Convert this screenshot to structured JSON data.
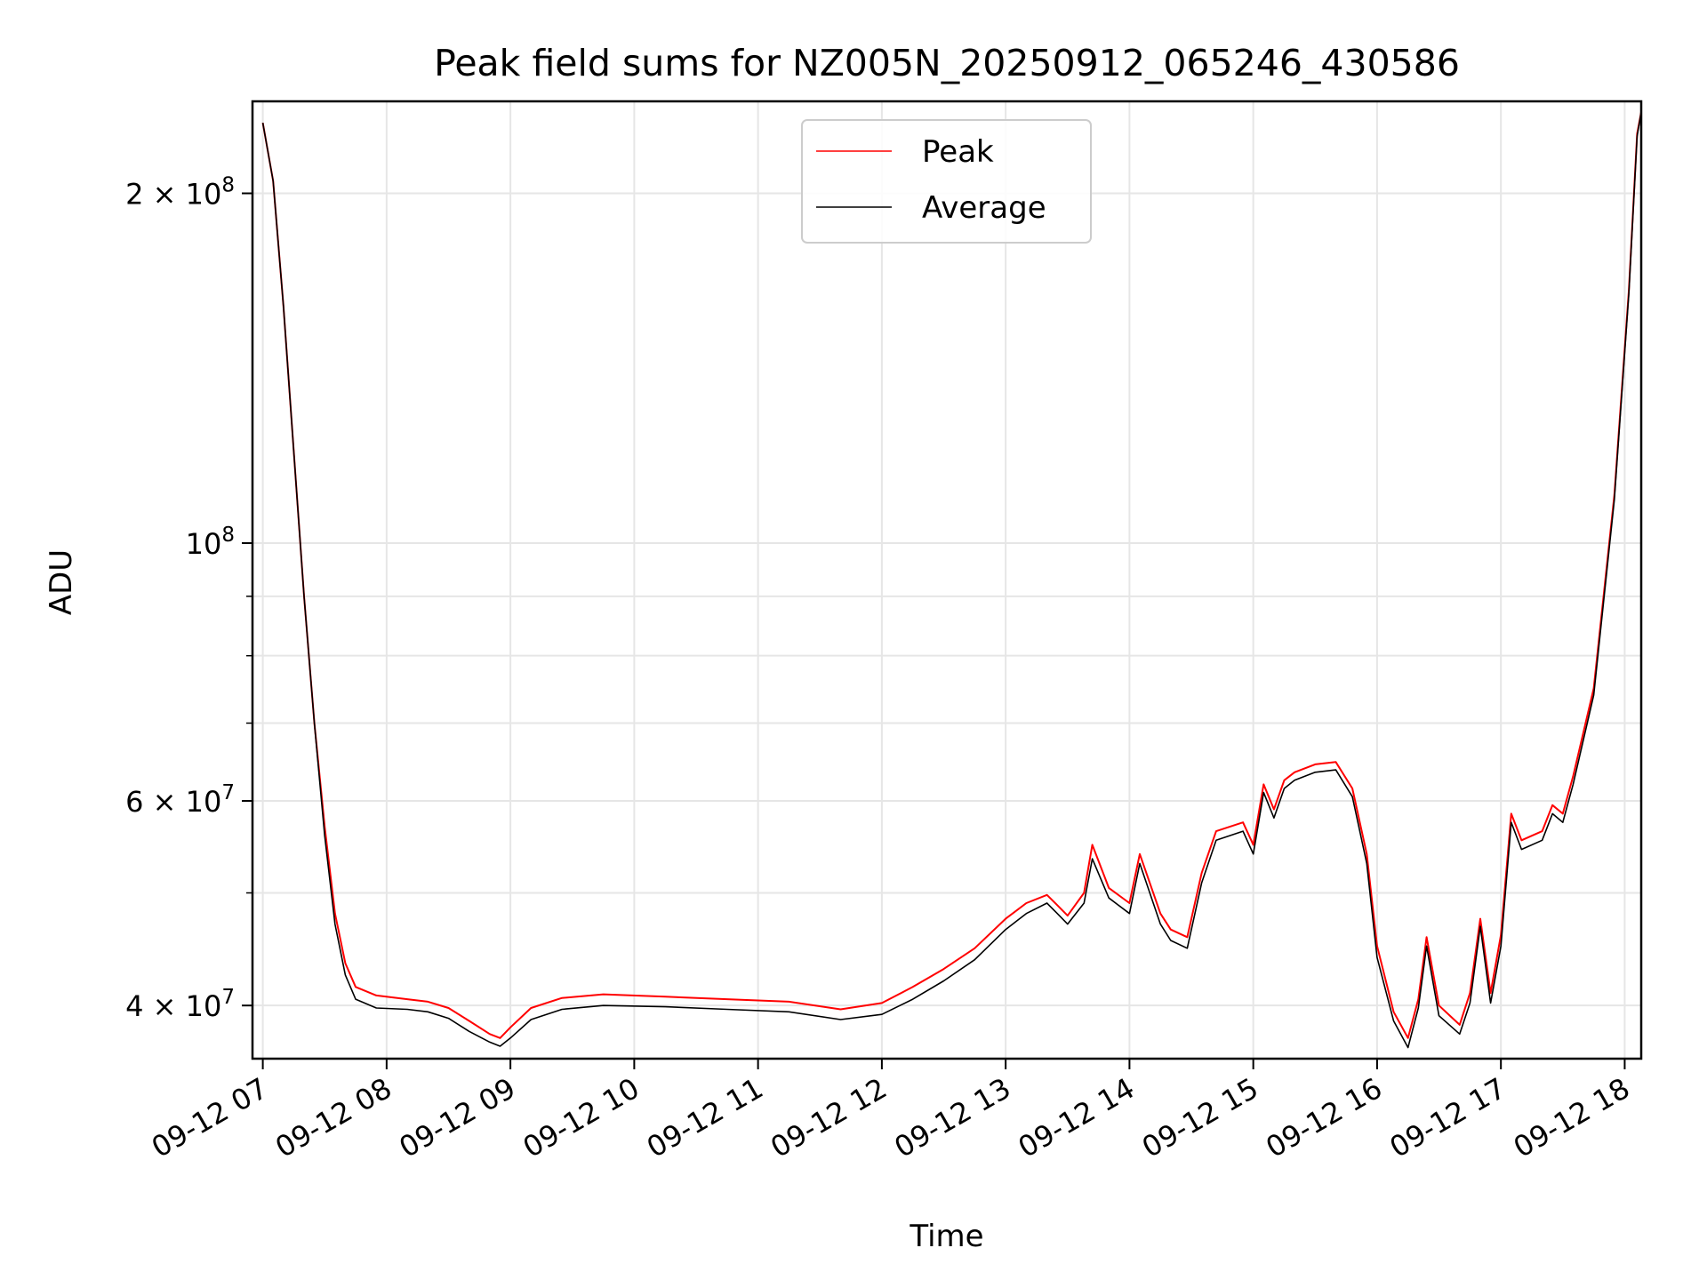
{
  "chart_data": {
    "type": "line",
    "title": "Peak field sums for NZ005N_20250912_065246_430586",
    "xlabel": "Time",
    "ylabel": "ADU",
    "yscale": "log",
    "ylim": [
      36000000,
      240000000
    ],
    "xlim": [
      "2025-09-12T06:55",
      "2025-09-12T18:08"
    ],
    "grid": true,
    "legend_position": "upper center",
    "x_tick_labels": [
      "09-12 07",
      "09-12 08",
      "09-12 09",
      "09-12 10",
      "09-12 11",
      "09-12 12",
      "09-12 13",
      "09-12 14",
      "09-12 15",
      "09-12 16",
      "09-12 17",
      "09-12 18"
    ],
    "y_tick_labels": [
      {
        "value": 40000000,
        "base": "4 × 10",
        "exp": "7"
      },
      {
        "value": 60000000,
        "base": "6 × 10",
        "exp": "7"
      },
      {
        "value": 100000000,
        "base": "10",
        "exp": "8"
      },
      {
        "value": 200000000,
        "base": "2 × 10",
        "exp": "8"
      }
    ],
    "series": [
      {
        "name": "Peak",
        "color": "#ff0000",
        "points": [
          [
            "2025-09-12T07:00",
            230000000
          ],
          [
            "2025-09-12T07:05",
            205000000
          ],
          [
            "2025-09-12T07:10",
            160000000
          ],
          [
            "2025-09-12T07:15",
            120000000
          ],
          [
            "2025-09-12T07:20",
            90000000
          ],
          [
            "2025-09-12T07:25",
            70000000
          ],
          [
            "2025-09-12T07:30",
            57000000
          ],
          [
            "2025-09-12T07:35",
            48000000
          ],
          [
            "2025-09-12T07:40",
            43500000
          ],
          [
            "2025-09-12T07:45",
            41500000
          ],
          [
            "2025-09-12T07:55",
            40800000
          ],
          [
            "2025-09-12T08:10",
            40500000
          ],
          [
            "2025-09-12T08:20",
            40300000
          ],
          [
            "2025-09-12T08:30",
            39800000
          ],
          [
            "2025-09-12T08:40",
            38800000
          ],
          [
            "2025-09-12T08:50",
            37800000
          ],
          [
            "2025-09-12T08:55",
            37500000
          ],
          [
            "2025-09-12T09:00",
            38300000
          ],
          [
            "2025-09-12T09:10",
            39800000
          ],
          [
            "2025-09-12T09:25",
            40600000
          ],
          [
            "2025-09-12T09:45",
            40900000
          ],
          [
            "2025-09-12T10:15",
            40700000
          ],
          [
            "2025-09-12T10:45",
            40500000
          ],
          [
            "2025-09-12T11:15",
            40300000
          ],
          [
            "2025-09-12T11:40",
            39700000
          ],
          [
            "2025-09-12T12:00",
            40200000
          ],
          [
            "2025-09-12T12:15",
            41500000
          ],
          [
            "2025-09-12T12:30",
            43000000
          ],
          [
            "2025-09-12T12:45",
            44800000
          ],
          [
            "2025-09-12T13:00",
            47500000
          ],
          [
            "2025-09-12T13:10",
            49000000
          ],
          [
            "2025-09-12T13:20",
            49800000
          ],
          [
            "2025-09-12T13:25",
            48800000
          ],
          [
            "2025-09-12T13:30",
            47800000
          ],
          [
            "2025-09-12T13:38",
            50000000
          ],
          [
            "2025-09-12T13:42",
            55000000
          ],
          [
            "2025-09-12T13:50",
            50500000
          ],
          [
            "2025-09-12T14:00",
            49000000
          ],
          [
            "2025-09-12T14:05",
            54000000
          ],
          [
            "2025-09-12T14:15",
            48000000
          ],
          [
            "2025-09-12T14:20",
            46500000
          ],
          [
            "2025-09-12T14:28",
            45800000
          ],
          [
            "2025-09-12T14:35",
            52000000
          ],
          [
            "2025-09-12T14:42",
            56500000
          ],
          [
            "2025-09-12T14:55",
            57500000
          ],
          [
            "2025-09-12T15:00",
            55000000
          ],
          [
            "2025-09-12T15:05",
            62000000
          ],
          [
            "2025-09-12T15:10",
            59000000
          ],
          [
            "2025-09-12T15:15",
            62500000
          ],
          [
            "2025-09-12T15:20",
            63500000
          ],
          [
            "2025-09-12T15:30",
            64500000
          ],
          [
            "2025-09-12T15:40",
            64800000
          ],
          [
            "2025-09-12T15:48",
            61500000
          ],
          [
            "2025-09-12T15:55",
            54000000
          ],
          [
            "2025-09-12T16:00",
            45000000
          ],
          [
            "2025-09-12T16:08",
            39500000
          ],
          [
            "2025-09-12T16:15",
            37500000
          ],
          [
            "2025-09-12T16:20",
            40500000
          ],
          [
            "2025-09-12T16:24",
            45800000
          ],
          [
            "2025-09-12T16:30",
            40000000
          ],
          [
            "2025-09-12T16:40",
            38500000
          ],
          [
            "2025-09-12T16:45",
            41000000
          ],
          [
            "2025-09-12T16:50",
            47500000
          ],
          [
            "2025-09-12T16:55",
            41000000
          ],
          [
            "2025-09-12T17:00",
            46000000
          ],
          [
            "2025-09-12T17:05",
            58500000
          ],
          [
            "2025-09-12T17:10",
            55500000
          ],
          [
            "2025-09-12T17:20",
            56500000
          ],
          [
            "2025-09-12T17:25",
            59500000
          ],
          [
            "2025-09-12T17:30",
            58500000
          ],
          [
            "2025-09-12T17:35",
            63000000
          ],
          [
            "2025-09-12T17:45",
            75000000
          ],
          [
            "2025-09-12T17:55",
            110000000
          ],
          [
            "2025-09-12T18:02",
            165000000
          ],
          [
            "2025-09-12T18:06",
            225000000
          ],
          [
            "2025-09-12T18:08",
            235000000
          ]
        ]
      },
      {
        "name": "Average",
        "color": "#000000",
        "points": [
          [
            "2025-09-12T07:00",
            230000000
          ],
          [
            "2025-09-12T07:05",
            205000000
          ],
          [
            "2025-09-12T07:10",
            160000000
          ],
          [
            "2025-09-12T07:15",
            120000000
          ],
          [
            "2025-09-12T07:20",
            90000000
          ],
          [
            "2025-09-12T07:25",
            70000000
          ],
          [
            "2025-09-12T07:30",
            56000000
          ],
          [
            "2025-09-12T07:35",
            47000000
          ],
          [
            "2025-09-12T07:40",
            42500000
          ],
          [
            "2025-09-12T07:45",
            40500000
          ],
          [
            "2025-09-12T07:55",
            39800000
          ],
          [
            "2025-09-12T08:10",
            39700000
          ],
          [
            "2025-09-12T08:20",
            39500000
          ],
          [
            "2025-09-12T08:30",
            39000000
          ],
          [
            "2025-09-12T08:40",
            38000000
          ],
          [
            "2025-09-12T08:50",
            37200000
          ],
          [
            "2025-09-12T08:55",
            36900000
          ],
          [
            "2025-09-12T09:00",
            37500000
          ],
          [
            "2025-09-12T09:10",
            38900000
          ],
          [
            "2025-09-12T09:25",
            39700000
          ],
          [
            "2025-09-12T09:45",
            40000000
          ],
          [
            "2025-09-12T10:15",
            39900000
          ],
          [
            "2025-09-12T10:45",
            39700000
          ],
          [
            "2025-09-12T11:15",
            39500000
          ],
          [
            "2025-09-12T11:40",
            38900000
          ],
          [
            "2025-09-12T12:00",
            39300000
          ],
          [
            "2025-09-12T12:15",
            40500000
          ],
          [
            "2025-09-12T12:30",
            42000000
          ],
          [
            "2025-09-12T12:45",
            43800000
          ],
          [
            "2025-09-12T13:00",
            46500000
          ],
          [
            "2025-09-12T13:10",
            48000000
          ],
          [
            "2025-09-12T13:20",
            49000000
          ],
          [
            "2025-09-12T13:25",
            48000000
          ],
          [
            "2025-09-12T13:30",
            47000000
          ],
          [
            "2025-09-12T13:38",
            49000000
          ],
          [
            "2025-09-12T13:42",
            53500000
          ],
          [
            "2025-09-12T13:50",
            49500000
          ],
          [
            "2025-09-12T14:00",
            48000000
          ],
          [
            "2025-09-12T14:05",
            53000000
          ],
          [
            "2025-09-12T14:15",
            47000000
          ],
          [
            "2025-09-12T14:20",
            45500000
          ],
          [
            "2025-09-12T14:28",
            44800000
          ],
          [
            "2025-09-12T14:35",
            51000000
          ],
          [
            "2025-09-12T14:42",
            55500000
          ],
          [
            "2025-09-12T14:55",
            56500000
          ],
          [
            "2025-09-12T15:00",
            54000000
          ],
          [
            "2025-09-12T15:05",
            61000000
          ],
          [
            "2025-09-12T15:10",
            58000000
          ],
          [
            "2025-09-12T15:15",
            61500000
          ],
          [
            "2025-09-12T15:20",
            62500000
          ],
          [
            "2025-09-12T15:30",
            63500000
          ],
          [
            "2025-09-12T15:40",
            63800000
          ],
          [
            "2025-09-12T15:48",
            60500000
          ],
          [
            "2025-09-12T15:55",
            53000000
          ],
          [
            "2025-09-12T16:00",
            44000000
          ],
          [
            "2025-09-12T16:08",
            38800000
          ],
          [
            "2025-09-12T16:15",
            36800000
          ],
          [
            "2025-09-12T16:20",
            39800000
          ],
          [
            "2025-09-12T16:24",
            45000000
          ],
          [
            "2025-09-12T16:30",
            39200000
          ],
          [
            "2025-09-12T16:40",
            37800000
          ],
          [
            "2025-09-12T16:45",
            40200000
          ],
          [
            "2025-09-12T16:50",
            46800000
          ],
          [
            "2025-09-12T16:55",
            40200000
          ],
          [
            "2025-09-12T17:00",
            45000000
          ],
          [
            "2025-09-12T17:05",
            57500000
          ],
          [
            "2025-09-12T17:10",
            54500000
          ],
          [
            "2025-09-12T17:20",
            55500000
          ],
          [
            "2025-09-12T17:25",
            58500000
          ],
          [
            "2025-09-12T17:30",
            57500000
          ],
          [
            "2025-09-12T17:35",
            62000000
          ],
          [
            "2025-09-12T17:45",
            74000000
          ],
          [
            "2025-09-12T17:55",
            109000000
          ],
          [
            "2025-09-12T18:02",
            164000000
          ],
          [
            "2025-09-12T18:06",
            224000000
          ],
          [
            "2025-09-12T18:08",
            235000000
          ]
        ]
      }
    ]
  }
}
